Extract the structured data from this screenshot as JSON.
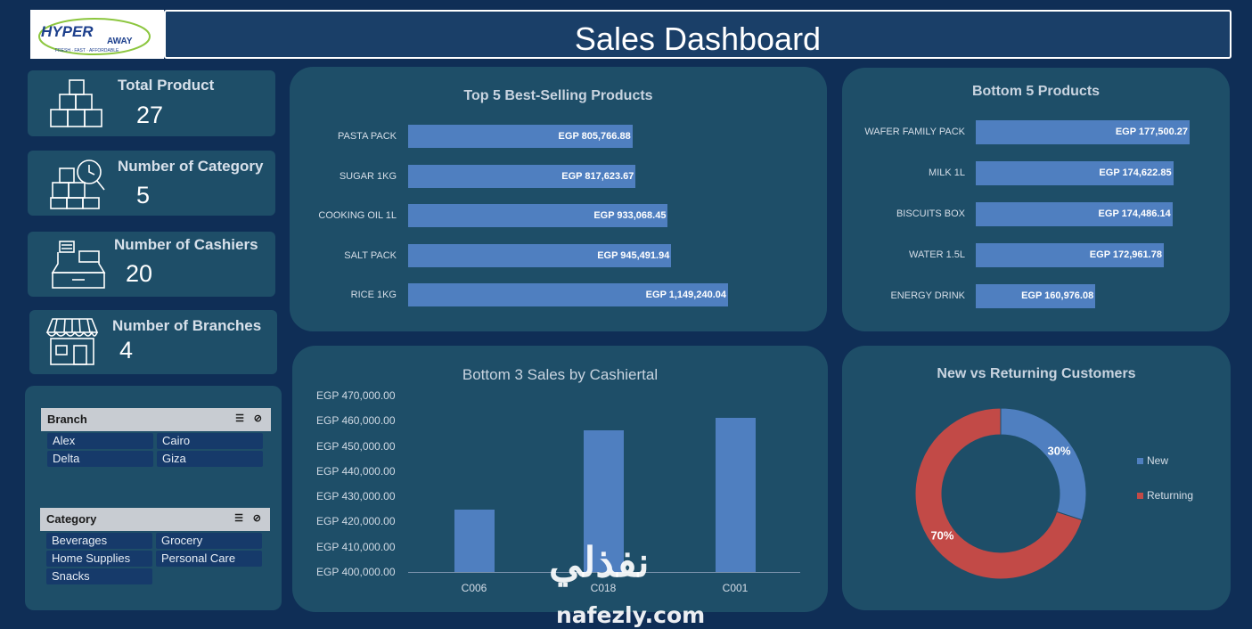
{
  "header": {
    "title": "Sales Dashboard"
  },
  "logo": {
    "brand": "HYPER AWAY",
    "tagline": "FRESH · FAST · AFFORDABLE"
  },
  "kpis": [
    {
      "label": "Total Product",
      "value": "27",
      "icon": "boxes-icon"
    },
    {
      "label": "Number of Category",
      "value": "5",
      "icon": "boxes-clock-search-icon"
    },
    {
      "label": "Number of Cashiers",
      "value": "20",
      "icon": "cash-register-icon"
    },
    {
      "label": "Number of Branches",
      "value": "4",
      "icon": "storefront-icon"
    }
  ],
  "slicers": {
    "branch": {
      "title": "Branch",
      "items": [
        "Alex",
        "Cairo",
        "Delta",
        "Giza"
      ]
    },
    "category": {
      "title": "Category",
      "items": [
        "Beverages",
        "Grocery",
        "Home Supplies",
        "Personal Care",
        "Snacks"
      ]
    }
  },
  "top5": {
    "title": "Top 5 Best-Selling Products",
    "categories": [
      "PASTA PACK",
      "SUGAR 1KG",
      "COOKING OIL 1L",
      "SALT PACK",
      "RICE 1KG"
    ],
    "values": [
      805766.88,
      817623.67,
      933068.45,
      945491.94,
      1149240.04
    ],
    "labels": [
      "EGP 805,766.88",
      "EGP 817,623.67",
      "EGP 933,068.45",
      "EGP 945,491.94",
      "EGP 1,149,240.04"
    ]
  },
  "bottom5": {
    "title": "Bottom 5 Products",
    "categories": [
      "WAFER FAMILY PACK",
      "MILK 1L",
      "BISCUITS BOX",
      "WATER 1.5L",
      "ENERGY DRINK"
    ],
    "values": [
      177500.27,
      174622.85,
      174486.14,
      172961.78,
      160976.08
    ],
    "labels": [
      "EGP 177,500.27",
      "EGP 174,622.85",
      "EGP 174,486.14",
      "EGP 172,961.78",
      "EGP 160,976.08"
    ]
  },
  "cashiers": {
    "title": "Bottom 3 Sales by Cashiertal",
    "categories": [
      "C006",
      "C018",
      "C001"
    ],
    "values": [
      424800,
      456200,
      461100
    ],
    "ylim": [
      400000,
      470000
    ],
    "yticks": [
      "EGP 470,000.00",
      "EGP 460,000.00",
      "EGP 450,000.00",
      "EGP 440,000.00",
      "EGP 430,000.00",
      "EGP 420,000.00",
      "EGP 410,000.00",
      "EGP 400,000.00"
    ]
  },
  "customers": {
    "title": "New vs Returning Customers",
    "slices": [
      {
        "name": "New",
        "value": 30,
        "label": "30%",
        "color": "#4f7fc0"
      },
      {
        "name": "Returning",
        "value": 70,
        "label": "70%",
        "color": "#c24a47"
      }
    ]
  },
  "watermark": {
    "arabic": "نفذلي",
    "latin": "nafezly.com"
  },
  "colors": {
    "background": "#0f2e56",
    "panel": "#1e4e68",
    "bar": "#4f7fc0"
  }
}
